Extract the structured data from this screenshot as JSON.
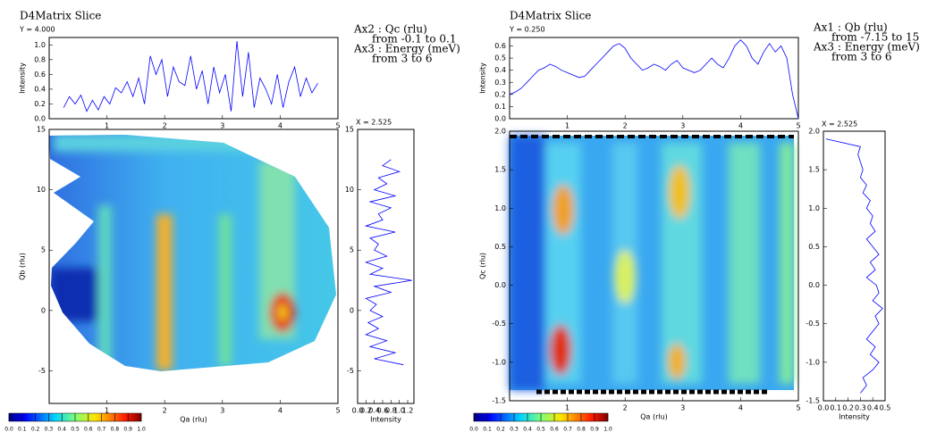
{
  "chart_data": [
    {
      "type": "line",
      "title": "D4Matrix Slice",
      "subtitle": "Y = 4.000",
      "y_label": "Intensity",
      "color": "#0000ff",
      "x": [
        0.25,
        0.35,
        0.45,
        0.55,
        0.65,
        0.75,
        0.85,
        0.95,
        1.05,
        1.15,
        1.25,
        1.35,
        1.45,
        1.55,
        1.65,
        1.75,
        1.85,
        1.95,
        2.05,
        2.15,
        2.25,
        2.35,
        2.45,
        2.55,
        2.65,
        2.75,
        2.85,
        2.95,
        3.05,
        3.15,
        3.25,
        3.35,
        3.45,
        3.55,
        3.65,
        3.75,
        3.85,
        3.95,
        4.05,
        4.15,
        4.25,
        4.35,
        4.45,
        4.55,
        4.65
      ],
      "values": [
        0.15,
        0.3,
        0.2,
        0.32,
        0.1,
        0.25,
        0.12,
        0.3,
        0.2,
        0.42,
        0.35,
        0.5,
        0.3,
        0.55,
        0.2,
        0.85,
        0.6,
        0.8,
        0.3,
        0.7,
        0.5,
        0.45,
        0.85,
        0.4,
        0.65,
        0.2,
        0.7,
        0.35,
        0.6,
        0.1,
        1.05,
        0.3,
        0.9,
        0.15,
        0.55,
        0.4,
        0.2,
        0.6,
        0.15,
        0.5,
        0.7,
        0.3,
        0.55,
        0.35,
        0.48
      ],
      "xlim": [
        0,
        5
      ],
      "xticks": [
        1,
        2,
        3,
        4,
        5
      ],
      "ylim": [
        0,
        1.1
      ],
      "yticks": [
        {
          "value": 0,
          "label": "0.0"
        },
        0.2,
        0.4,
        0.6,
        0.8,
        {
          "value": 1,
          "label": "1.0"
        }
      ]
    },
    {
      "type": "heatmap",
      "x_label": "Qa (rlu)",
      "y_label": "Qb (rlu)",
      "xlim": [
        0,
        5
      ],
      "xticks": [
        1,
        2,
        3,
        4,
        5
      ],
      "ylim": [
        -7.7,
        15
      ],
      "yticks": [
        -5,
        0,
        5,
        10,
        15
      ],
      "annotations": [
        "Ax2 : Qc (rlu)",
        "from -0.1 to 0.1",
        "Ax3 : Energy (meV)",
        "from 3 to 6"
      ]
    },
    {
      "type": "line",
      "orientation": "vertical",
      "subtitle": "X = 2.525",
      "x_label": "Intensity",
      "color": "#0000ff",
      "y": [
        -4.5,
        -4,
        -3.5,
        -3,
        -2.5,
        -2,
        -1.5,
        -1,
        -0.5,
        0,
        0.5,
        1,
        1.5,
        2,
        2.5,
        3,
        3.5,
        4,
        4.5,
        5,
        5.5,
        6,
        6.5,
        7,
        7.5,
        8,
        8.5,
        9,
        9.5,
        10,
        10.5,
        11,
        11.5,
        12,
        12.5
      ],
      "values": [
        1.1,
        0.4,
        0.9,
        0.3,
        0.7,
        0.2,
        0.5,
        0.25,
        0.6,
        0.3,
        0.45,
        0.2,
        0.8,
        0.4,
        1.3,
        0.3,
        0.6,
        0.2,
        0.7,
        0.4,
        0.5,
        0.3,
        0.9,
        0.2,
        0.6,
        0.5,
        0.8,
        0.3,
        0.9,
        0.4,
        0.7,
        0.5,
        1.0,
        0.6,
        0.8
      ],
      "xlim": [
        0,
        1.35
      ],
      "xticks": [
        {
          "value": 0,
          "label": "0.0"
        },
        0.2,
        0.4,
        0.6,
        0.8,
        {
          "value": 1,
          "label": "1.0"
        },
        1.2
      ],
      "ylim": [
        -7.7,
        15
      ],
      "yticks": [
        -5,
        0,
        5,
        10,
        15
      ]
    },
    {
      "type": "colorbar",
      "xlim": [
        0,
        1
      ],
      "xticks": [
        {
          "value": 0,
          "label": "0.0"
        },
        0.1,
        0.2,
        0.3,
        0.4,
        0.5,
        0.6,
        0.7,
        0.8,
        0.9,
        {
          "value": 1,
          "label": "1.0"
        }
      ]
    },
    {
      "type": "line",
      "title": "D4Matrix Slice",
      "subtitle": "Y = 0.250",
      "y_label": "Intensity",
      "color": "#0000ff",
      "x": [
        0,
        0.1,
        0.2,
        0.3,
        0.4,
        0.5,
        0.6,
        0.7,
        0.8,
        0.9,
        1,
        1.1,
        1.2,
        1.3,
        1.4,
        1.5,
        1.6,
        1.7,
        1.8,
        1.9,
        2,
        2.1,
        2.2,
        2.3,
        2.4,
        2.5,
        2.6,
        2.7,
        2.8,
        2.9,
        3,
        3.1,
        3.2,
        3.3,
        3.4,
        3.5,
        3.6,
        3.7,
        3.8,
        3.9,
        4,
        4.1,
        4.2,
        4.3,
        4.4,
        4.5,
        4.6,
        4.7,
        4.8,
        4.9,
        5
      ],
      "values": [
        0.2,
        0.22,
        0.25,
        0.3,
        0.35,
        0.4,
        0.42,
        0.45,
        0.43,
        0.4,
        0.38,
        0.36,
        0.34,
        0.35,
        0.4,
        0.45,
        0.5,
        0.55,
        0.6,
        0.62,
        0.58,
        0.5,
        0.45,
        0.4,
        0.42,
        0.45,
        0.43,
        0.4,
        0.45,
        0.48,
        0.42,
        0.4,
        0.38,
        0.4,
        0.45,
        0.5,
        0.45,
        0.42,
        0.5,
        0.6,
        0.65,
        0.6,
        0.5,
        0.45,
        0.55,
        0.62,
        0.55,
        0.6,
        0.5,
        0.2,
        0
      ],
      "xlim": [
        0,
        5
      ],
      "xticks": [
        1,
        2,
        3,
        4,
        5
      ],
      "ylim": [
        0,
        0.67
      ],
      "yticks": [
        {
          "value": 0,
          "label": "0.0"
        },
        0.1,
        0.2,
        0.3,
        0.4,
        0.5,
        0.6
      ]
    },
    {
      "type": "heatmap",
      "x_label": "Qa (rlu)",
      "y_label": "Qc (rlu)",
      "xlim": [
        0,
        5
      ],
      "xticks": [
        1,
        2,
        3,
        4,
        5
      ],
      "ylim": [
        -1.5,
        2
      ],
      "yticks": [
        -1.5,
        {
          "value": -1,
          "label": "-1.0"
        },
        -0.5,
        {
          "value": 0,
          "label": "0.0"
        },
        0.5,
        {
          "value": 1,
          "label": "1.0"
        },
        1.5,
        {
          "value": 2,
          "label": "2.0"
        }
      ],
      "annotations": [
        "Ax1 : Qb (rlu)",
        "from -7.15 to 15",
        "Ax3 : Energy (meV)",
        "from 3 to 6"
      ]
    },
    {
      "type": "line",
      "orientation": "vertical",
      "subtitle": "X = 2.525",
      "x_label": "Intensity",
      "color": "#0000ff",
      "y": [
        -1.4,
        -1.3,
        -1.2,
        -1.1,
        -1,
        -0.9,
        -0.8,
        -0.7,
        -0.6,
        -0.5,
        -0.4,
        -0.3,
        -0.2,
        -0.1,
        0,
        0.1,
        0.2,
        0.3,
        0.4,
        0.5,
        0.6,
        0.7,
        0.8,
        0.9,
        1,
        1.1,
        1.2,
        1.3,
        1.4,
        1.5,
        1.6,
        1.7,
        1.8,
        1.9
      ],
      "values": [
        0.3,
        0.35,
        0.32,
        0.4,
        0.45,
        0.38,
        0.42,
        0.35,
        0.4,
        0.45,
        0.42,
        0.48,
        0.4,
        0.45,
        0.43,
        0.35,
        0.42,
        0.38,
        0.45,
        0.4,
        0.35,
        0.42,
        0.38,
        0.4,
        0.35,
        0.38,
        0.32,
        0.35,
        0.3,
        0.32,
        0.3,
        0.28,
        0.3,
        0.02
      ],
      "xlim": [
        0,
        0.5
      ],
      "xticks": [
        {
          "value": 0,
          "label": "0.0"
        },
        0.1,
        0.2,
        0.3,
        0.4,
        0.5
      ],
      "ylim": [
        -1.5,
        2
      ],
      "yticks": [
        -1.5,
        {
          "value": -1,
          "label": "-1.0"
        },
        -0.5,
        {
          "value": 0,
          "label": "0.0"
        },
        0.5,
        {
          "value": 1,
          "label": "1.0"
        },
        1.5,
        {
          "value": 2,
          "label": "2.0"
        }
      ]
    },
    {
      "type": "colorbar",
      "xlim": [
        0,
        1
      ],
      "xticks": [
        {
          "value": 0,
          "label": "0.0"
        },
        0.1,
        0.2,
        0.3,
        0.4,
        0.5,
        0.6,
        0.7,
        0.8,
        0.9,
        {
          "value": 1,
          "label": "1.0"
        }
      ]
    }
  ]
}
